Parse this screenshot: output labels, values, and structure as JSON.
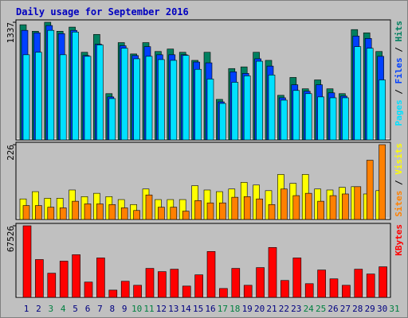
{
  "title": "Daily usage for September 2016",
  "chart_data": [
    {
      "type": "bar",
      "categories": [
        "1",
        "2",
        "3",
        "4",
        "5",
        "6",
        "7",
        "8",
        "9",
        "10",
        "11",
        "12",
        "13",
        "14",
        "15",
        "16",
        "17",
        "18",
        "19",
        "20",
        "21",
        "22",
        "23",
        "24",
        "25",
        "26",
        "27",
        "28",
        "29",
        "30",
        "31"
      ],
      "category_colors": [
        "#000080",
        "#000080",
        "#008040",
        "#008040",
        "#000080",
        "#000080",
        "#000080",
        "#000080",
        "#000080",
        "#008040",
        "#008040",
        "#000080",
        "#000080",
        "#000080",
        "#000080",
        "#000080",
        "#008040",
        "#008040",
        "#000080",
        "#000080",
        "#000080",
        "#000080",
        "#000080",
        "#008040",
        "#008040",
        "#000080",
        "#000080",
        "#000080",
        "#000080",
        "#000080",
        "#008040"
      ],
      "ylim": [
        0,
        1337
      ],
      "yticks": [
        1337
      ],
      "legend_separator": " / ",
      "series": [
        {
          "name": "Hits",
          "color": "#008060",
          "values": [
            1309,
            1235,
            1337,
            1235,
            1282,
            996,
            1199,
            526,
            1106,
            977,
            1106,
            1005,
            1033,
            996,
            904,
            996,
            461,
            811,
            830,
            996,
            904,
            507,
            710,
            581,
            682,
            581,
            526,
            1254,
            1217,
            1005,
            0
          ]
        },
        {
          "name": "Files",
          "color": "#0040ff",
          "values": [
            1245,
            1217,
            1300,
            1208,
            1245,
            959,
            1088,
            489,
            1070,
            959,
            1060,
            968,
            968,
            968,
            885,
            876,
            433,
            774,
            756,
            922,
            839,
            479,
            627,
            553,
            627,
            535,
            498,
            1180,
            1153,
            950,
            0
          ]
        },
        {
          "name": "Pages",
          "color": "#00e0ff",
          "values": [
            968,
            996,
            1245,
            968,
            1226,
            950,
            1079,
            470,
            1042,
            922,
            950,
            913,
            904,
            960,
            802,
            692,
            415,
            655,
            728,
            894,
            738,
            452,
            562,
            526,
            489,
            479,
            479,
            1060,
            1042,
            682,
            0
          ]
        }
      ]
    },
    {
      "type": "bar",
      "ylim": [
        0,
        226
      ],
      "yticks": [
        226
      ],
      "legend_separator": " / ",
      "series": [
        {
          "name": "Visits",
          "color": "#ffff00",
          "values": [
            62,
            84,
            64,
            64,
            89,
            69,
            79,
            69,
            60,
            45,
            92,
            60,
            60,
            60,
            102,
            89,
            84,
            92,
            112,
            104,
            87,
            136,
            109,
            136,
            92,
            89,
            97,
            99,
            77,
            87,
            0
          ]
        },
        {
          "name": "Sites",
          "color": "#ff8000",
          "values": [
            42,
            42,
            37,
            35,
            55,
            47,
            47,
            45,
            35,
            27,
            74,
            37,
            37,
            25,
            57,
            50,
            50,
            67,
            69,
            62,
            45,
            92,
            72,
            79,
            55,
            72,
            77,
            99,
            179,
            226,
            0
          ]
        }
      ]
    },
    {
      "type": "bar",
      "ylim": [
        0,
        67526
      ],
      "yticks": [
        67526
      ],
      "series": [
        {
          "name": "KBytes",
          "color": "#ff0000",
          "values": [
            67526,
            35673,
            22770,
            34155,
            40227,
            14421,
            37191,
            6831,
            15180,
            11385,
            27324,
            24288,
            26565,
            10626,
            21252,
            43263,
            8349,
            27324,
            11385,
            28083,
            47058,
            15939,
            37191,
            12903,
            25806,
            17457,
            11385,
            26565,
            22011,
            28842,
            0
          ]
        }
      ]
    }
  ]
}
